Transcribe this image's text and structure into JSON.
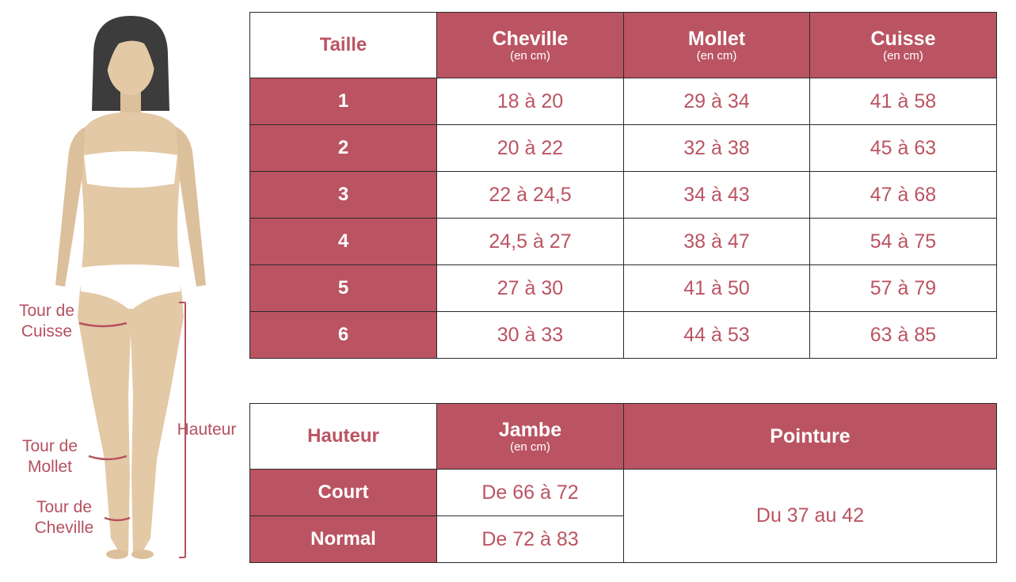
{
  "figure": {
    "labels": {
      "thigh": "Tour de\nCuisse",
      "calf": "Tour de\nMollet",
      "ankle": "Tour de\nCheville",
      "height": "Hauteur"
    }
  },
  "size_table": {
    "corner": "Taille",
    "columns": [
      {
        "title": "Cheville",
        "unit": "(en cm)"
      },
      {
        "title": "Mollet",
        "unit": "(en cm)"
      },
      {
        "title": "Cuisse",
        "unit": "(en cm)"
      }
    ],
    "rows": [
      {
        "size": "1",
        "cells": [
          "18 à 20",
          "29 à 34",
          "41 à 58"
        ]
      },
      {
        "size": "2",
        "cells": [
          "20 à 22",
          "32 à 38",
          "45 à 63"
        ]
      },
      {
        "size": "3",
        "cells": [
          "22 à 24,5",
          "34 à 43",
          "47 à 68"
        ]
      },
      {
        "size": "4",
        "cells": [
          "24,5 à 27",
          "38 à 47",
          "54 à 75"
        ]
      },
      {
        "size": "5",
        "cells": [
          "27 à 30",
          "41 à 50",
          "57 à 79"
        ]
      },
      {
        "size": "6",
        "cells": [
          "30 à 33",
          "44 à 53",
          "63 à 85"
        ]
      }
    ]
  },
  "height_table": {
    "corner": "Hauteur",
    "jambe": {
      "title": "Jambe",
      "unit": "(en cm)"
    },
    "pointure": {
      "title": "Pointure"
    },
    "rows": [
      {
        "label": "Court",
        "jambe": "De 66 à 72"
      },
      {
        "label": "Normal",
        "jambe": "De 72 à 83"
      }
    ],
    "pointure_value": "Du 37 au 42"
  },
  "colors": {
    "accent": "#bb5462",
    "skin": "#e3c9a6",
    "hair": "#3c3c3c",
    "underwear": "#ffffff"
  }
}
